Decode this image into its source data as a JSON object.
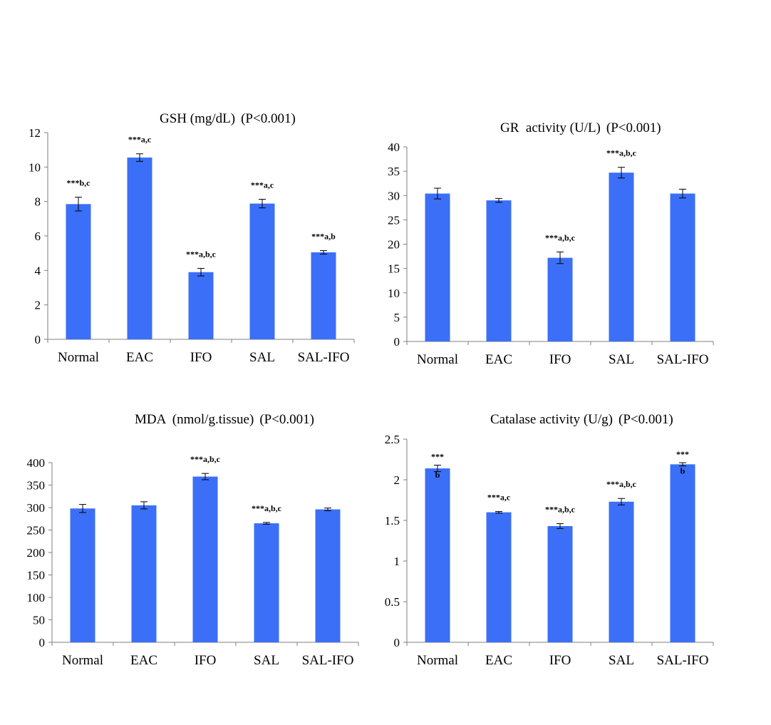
{
  "figure": {
    "bar_color": "#3B6FF7",
    "error_bar_color": "#000000",
    "axis_color": "#7F7F7F"
  },
  "chart_data": [
    {
      "type": "bar",
      "title": "GSH (mg/dL)",
      "p_value": "(P<0.001)",
      "xlabel": "",
      "ylabel": "",
      "categories": [
        "Normal",
        "EAC",
        "IFO",
        "SAL",
        "SAL-IFO"
      ],
      "values": [
        7.85,
        10.55,
        3.9,
        7.88,
        5.05
      ],
      "errors": [
        0.4,
        0.22,
        0.22,
        0.25,
        0.1
      ],
      "annotations": [
        "***b,c",
        "***a,c",
        "***a,b,c",
        "***a,c",
        "***a,b"
      ],
      "ylim": [
        0,
        12
      ],
      "yticks": [
        0,
        2,
        4,
        6,
        8,
        10,
        12
      ]
    },
    {
      "type": "bar",
      "title": "GR  activity (U/L)",
      "p_value": "(P<0.001)",
      "xlabel": "",
      "ylabel": "",
      "categories": [
        "Normal",
        "EAC",
        "IFO",
        "SAL",
        "SAL-IFO"
      ],
      "values": [
        30.4,
        29.0,
        17.2,
        34.7,
        30.4
      ],
      "errors": [
        1.1,
        0.4,
        1.2,
        1.1,
        0.9
      ],
      "annotations": [
        "",
        "",
        "***a,b,c",
        "***a,b,c",
        ""
      ],
      "ylim": [
        0,
        40
      ],
      "yticks": [
        0,
        5,
        10,
        15,
        20,
        25,
        30,
        35,
        40
      ]
    },
    {
      "type": "bar",
      "title": "MDA  (nmol/g.tissue)",
      "p_value": "(P<0.001)",
      "xlabel": "",
      "ylabel": "",
      "categories": [
        "Normal",
        "EAC",
        "IFO",
        "SAL",
        "SAL-IFO"
      ],
      "values": [
        298,
        305,
        369,
        265,
        296
      ],
      "errors": [
        9,
        8,
        7,
        2,
        3
      ],
      "annotations": [
        "",
        "",
        "***a,b,c",
        "***a,b,c",
        ""
      ],
      "ylim": [
        0,
        400
      ],
      "yticks": [
        0,
        50,
        100,
        150,
        200,
        250,
        300,
        350,
        400
      ]
    },
    {
      "type": "bar",
      "title": "Catalase activity (U/g)",
      "p_value": "(P<0.001)",
      "xlabel": "",
      "ylabel": "",
      "categories": [
        "Normal",
        "EAC",
        "IFO",
        "SAL",
        "SAL-IFO"
      ],
      "values": [
        2.14,
        1.6,
        1.43,
        1.73,
        2.19
      ],
      "errors": [
        0.04,
        0.01,
        0.03,
        0.04,
        0.02
      ],
      "annotations": [
        "***\nb",
        "***a,c",
        "***a,b,c",
        "***a,b,c",
        "***\nb"
      ],
      "ylim": [
        0,
        2.5
      ],
      "yticks": [
        0,
        0.5,
        1,
        1.5,
        2,
        2.5
      ]
    }
  ]
}
